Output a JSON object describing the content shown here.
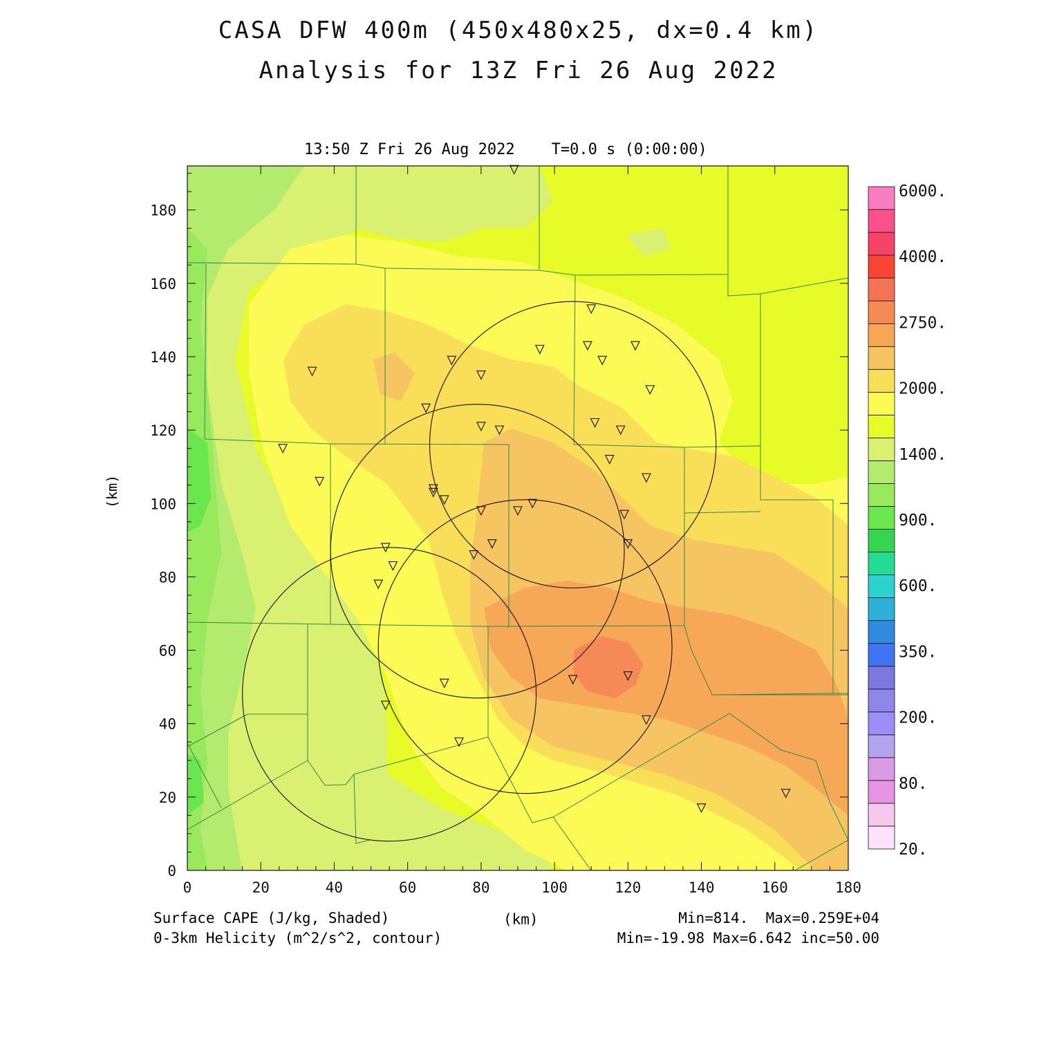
{
  "title": "CASA DFW 400m (450x480x25, dx=0.4 km)",
  "subtitle": "Analysis for 13Z Fri 26 Aug 2022",
  "valid_time": "13:50 Z Fri 26 Aug 2022    T=0.0 s (0:00:00)",
  "axes": {
    "x_label": "(km)",
    "y_label": "(km)",
    "x_ticks": [
      "0",
      "20",
      "40",
      "60",
      "80",
      "100",
      "120",
      "140",
      "160",
      "180"
    ],
    "y_ticks": [
      "0",
      "20",
      "40",
      "60",
      "80",
      "100",
      "120",
      "140",
      "160",
      "180"
    ],
    "xlim": [
      0,
      180
    ],
    "ylim": [
      0,
      192
    ]
  },
  "colorbar": {
    "labels": [
      "6000.",
      "4000.",
      "2750.",
      "2000.",
      "1400.",
      "900.",
      "600.",
      "350.",
      "200.",
      "80.",
      "20."
    ],
    "colors": [
      "#fde2fb",
      "#f5c8ee",
      "#e893e3",
      "#d99ae6",
      "#b3a2ee",
      "#9b8ef6",
      "#8f86ea",
      "#7b78e0",
      "#3f74f2",
      "#2f8ae0",
      "#2eb0d8",
      "#2dd1cd",
      "#25dc95",
      "#35d552",
      "#6ae64e",
      "#98ea5c",
      "#b3eb6e",
      "#d9f070",
      "#e6fb28",
      "#fcfb55",
      "#f9de58",
      "#f6c460",
      "#f6a857",
      "#f58a57",
      "#f57355",
      "#f84535",
      "#f74466",
      "#fa518c",
      "#f97ec0"
    ]
  },
  "chart_data": {
    "type": "heatmap",
    "field": "Surface CAPE (J/kg, Shaded)",
    "contour_field": "0-3km Helicity (m^2/s^2, contour)",
    "cape_min": "814.",
    "cape_max": "0.259E+04",
    "helicity_min": "-19.98",
    "helicity_max": "6.642",
    "contour_inc": "50.00",
    "radar_rings_km": [
      {
        "cx": 105,
        "cy": 116,
        "r": 39
      },
      {
        "cx": 79,
        "cy": 87,
        "r": 40
      },
      {
        "cx": 92,
        "cy": 61,
        "r": 40
      },
      {
        "cx": 55,
        "cy": 48,
        "r": 40
      }
    ],
    "stations_km": [
      [
        89,
        191
      ],
      [
        110,
        153
      ],
      [
        96,
        142
      ],
      [
        109,
        143
      ],
      [
        122,
        143
      ],
      [
        113,
        139
      ],
      [
        126,
        131
      ],
      [
        34,
        136
      ],
      [
        72,
        139
      ],
      [
        80,
        135
      ],
      [
        65,
        126
      ],
      [
        80,
        121
      ],
      [
        85,
        120
      ],
      [
        111,
        122
      ],
      [
        118,
        120
      ],
      [
        26,
        115
      ],
      [
        36,
        106
      ],
      [
        115,
        112
      ],
      [
        125,
        107
      ],
      [
        67,
        104
      ],
      [
        67,
        103
      ],
      [
        70,
        101
      ],
      [
        94,
        100
      ],
      [
        90,
        98
      ],
      [
        80,
        98
      ],
      [
        119,
        97
      ],
      [
        54,
        88
      ],
      [
        56,
        83
      ],
      [
        83,
        89
      ],
      [
        120,
        89
      ],
      [
        78,
        86
      ],
      [
        52,
        78
      ],
      [
        70,
        51
      ],
      [
        105,
        52
      ],
      [
        120,
        53
      ],
      [
        54,
        45
      ],
      [
        74,
        35
      ],
      [
        125,
        41
      ],
      [
        140,
        17
      ],
      [
        163,
        21
      ]
    ]
  },
  "footer": {
    "left1": "Surface CAPE (J/kg, Shaded)",
    "left2": "0-3km Helicity (m^2/s^2, contour)",
    "center": "(km)",
    "right1": "Min=814.  Max=0.259E+04",
    "right2": "Min=-19.98 Max=6.642 inc=50.00"
  }
}
